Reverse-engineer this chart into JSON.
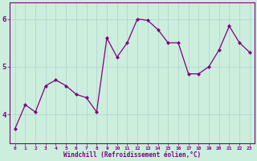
{
  "x": [
    0,
    1,
    2,
    3,
    4,
    5,
    6,
    7,
    8,
    9,
    10,
    11,
    12,
    13,
    14,
    15,
    16,
    17,
    18,
    19,
    20,
    21,
    22,
    23
  ],
  "y": [
    3.7,
    4.2,
    4.05,
    4.6,
    4.72,
    4.6,
    4.42,
    4.35,
    4.05,
    5.6,
    5.2,
    5.5,
    6.0,
    5.97,
    5.78,
    5.5,
    5.5,
    4.85,
    4.85,
    5.0,
    5.35,
    5.85,
    5.5,
    5.3
  ],
  "line_color": "#800080",
  "marker": "D",
  "marker_size": 2,
  "bg_color": "#cceedd",
  "xlabel": "Windchill (Refroidissement éolien,°C)",
  "ytick_labels": [
    "4",
    "5",
    "6"
  ],
  "ytick_vals": [
    4,
    5,
    6
  ],
  "ylim": [
    3.4,
    6.35
  ],
  "xlim": [
    -0.5,
    23.5
  ],
  "line_color_hex": "#800080",
  "grid_color": "#b0d0d0",
  "spine_color": "#800080",
  "tick_label_color": "#800080",
  "xlabel_color": "#800080"
}
